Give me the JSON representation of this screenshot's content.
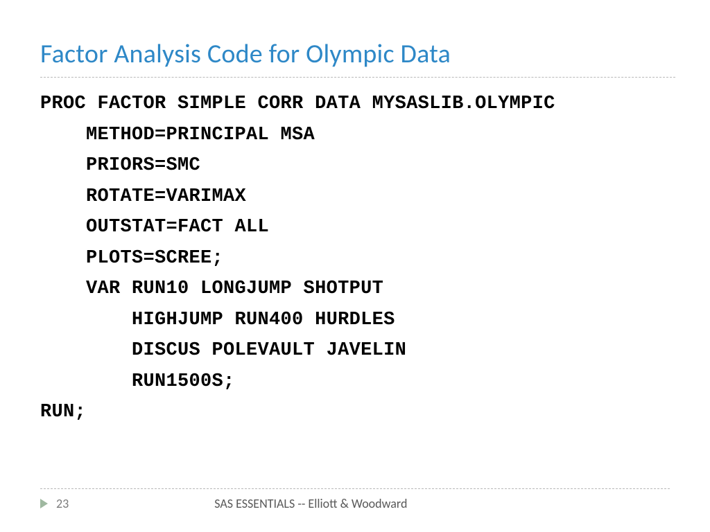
{
  "title": {
    "text": "Factor Analysis Code for Olympic Data",
    "color": "#2e88c7",
    "fontsize": 38
  },
  "divider": {
    "color": "#b8b8b8"
  },
  "code": {
    "fontsize": 27,
    "color": "#000000",
    "lines": [
      "PROC FACTOR SIMPLE CORR DATA MYSASLIB.OLYMPIC",
      "    METHOD=PRINCIPAL MSA",
      "    PRIORS=SMC",
      "    ROTATE=VARIMAX",
      "    OUTSTAT=FACT ALL",
      "    PLOTS=SCREE;",
      "    VAR RUN10 LONGJUMP SHOTPUT",
      "        HIGHJUMP RUN400 HURDLES",
      "        DISCUS POLEVAULT JAVELIN",
      "        RUN1500S;",
      "RUN;"
    ]
  },
  "footer": {
    "arrow_color": "#9fb8a0",
    "page_number": "23",
    "page_number_color": "#7a7a7a",
    "text": "SAS ESSENTIALS -- Elliott & Woodward",
    "text_color": "#595959"
  }
}
